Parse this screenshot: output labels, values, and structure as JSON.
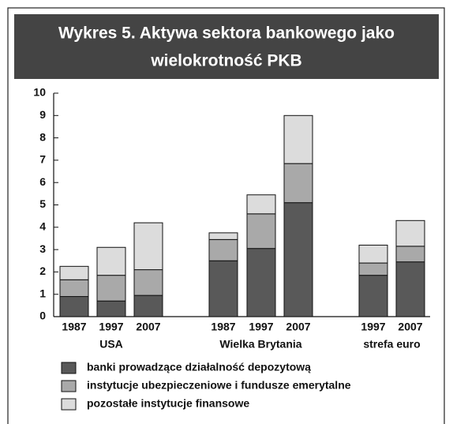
{
  "chart_data": {
    "type": "stacked_bar",
    "title": [
      "Wykres 5. Aktywa sektora bankowego jako",
      "wielokrotność PKB"
    ],
    "groups": [
      {
        "name": "USA",
        "categories": [
          "1987",
          "1997",
          "2007"
        ]
      },
      {
        "name": "Wielka Brytania",
        "categories": [
          "1987",
          "1997",
          "2007"
        ]
      },
      {
        "name": "strefa euro",
        "categories": [
          "1997",
          "2007"
        ]
      }
    ],
    "series": [
      {
        "name": "banki prowadzące działalność depozytową",
        "color": "#595959",
        "values": [
          0.9,
          0.7,
          0.95,
          2.5,
          3.05,
          5.1,
          1.85,
          2.45
        ]
      },
      {
        "name": "instytucje ubezpieczeniowe i fundusze emerytalne",
        "color": "#a9a9a9",
        "values": [
          0.75,
          1.15,
          1.15,
          0.95,
          1.55,
          1.75,
          0.55,
          0.7
        ]
      },
      {
        "name": "pozostałe instytucje finansowe",
        "color": "#dcdcdc",
        "values": [
          0.6,
          1.25,
          2.1,
          0.3,
          0.85,
          2.15,
          0.8,
          1.15
        ]
      }
    ],
    "ylim": [
      0,
      10
    ],
    "yticks": [
      0,
      1,
      2,
      3,
      4,
      5,
      6,
      7,
      8,
      9,
      10
    ]
  }
}
